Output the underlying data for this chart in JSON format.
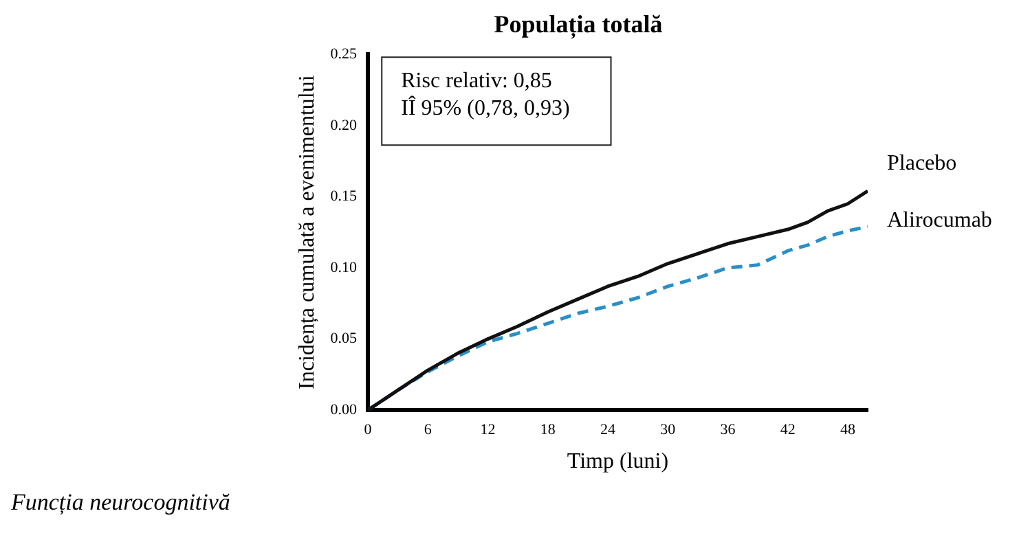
{
  "chart_data": {
    "type": "line",
    "title": "Populația totală",
    "xlabel": "Timp (luni)",
    "ylabel": "Incidența cumulată a evenimentului",
    "x": [
      0,
      3,
      6,
      9,
      12,
      15,
      18,
      21,
      24,
      27,
      30,
      33,
      36,
      39,
      42,
      44,
      46,
      48,
      50
    ],
    "series": [
      {
        "name": "Placebo",
        "color": "#111111",
        "line_style": "solid",
        "values": [
          0,
          0.014,
          0.028,
          0.04,
          0.05,
          0.059,
          0.069,
          0.078,
          0.087,
          0.094,
          0.103,
          0.11,
          0.117,
          0.122,
          0.127,
          0.132,
          0.14,
          0.145,
          0.154
        ]
      },
      {
        "name": "Alirocumab",
        "color": "#2a8fc8",
        "line_style": "dashed",
        "values": [
          0,
          0.014,
          0.027,
          0.038,
          0.048,
          0.054,
          0.061,
          0.068,
          0.073,
          0.079,
          0.087,
          0.093,
          0.1,
          0.102,
          0.112,
          0.116,
          0.122,
          0.126,
          0.129
        ]
      }
    ],
    "xlim": [
      0,
      50
    ],
    "xticks": [
      0,
      6,
      12,
      18,
      24,
      30,
      36,
      42,
      48
    ],
    "ylim": [
      0,
      0.25
    ],
    "yticks": [
      {
        "value": 0,
        "label": "0.00"
      },
      {
        "value": 0.05,
        "label": "0.05"
      },
      {
        "value": 0.1,
        "label": "0.10"
      },
      {
        "value": 0.15,
        "label": "0.15"
      },
      {
        "value": 0.2,
        "label": "0.20"
      },
      {
        "value": 0.25,
        "label": "0.25"
      }
    ],
    "grid": false,
    "legend": false,
    "marker": "none",
    "annotations": [
      "Risc relativ: 0,85\nIÎ 95% (0,78, 0,93)",
      "Funcția neurocognitivă"
    ]
  }
}
